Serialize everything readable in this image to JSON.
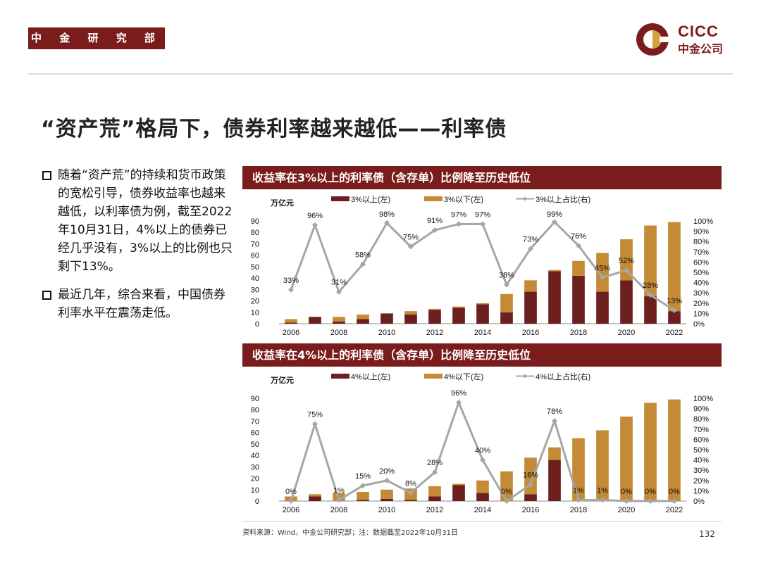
{
  "header": {
    "department": "中 金 研 究 部",
    "logo_en": "CICC",
    "logo_cn": "中金公司"
  },
  "title": "“资产荒”格局下，债券利率越来越低——利率债",
  "bullets": [
    "随着“资产荒”的持续和货币政策的宽松引导，债券收益率也越来越低，以利率债为例，截至2022年10月31日，4%以上的债券已经几乎没有，3%以上的比例也只剩下13%。",
    "最近几年，综合来看，中国债券利率水平在震荡走低。"
  ],
  "chart_data": [
    {
      "type": "bar",
      "panel_title": "收益率在3%以上的利率债（含存单）比例降至历史低位",
      "unit_label": "万亿元",
      "years": [
        2006,
        2007,
        2008,
        2009,
        2010,
        2011,
        2012,
        2013,
        2014,
        2015,
        2016,
        2017,
        2018,
        2019,
        2020,
        2021,
        2022
      ],
      "x_ticks": [
        "2006",
        "2008",
        "2010",
        "2012",
        "2014",
        "2016",
        "2018",
        "2020",
        "2022"
      ],
      "y_left_ticks": [
        "0",
        "10",
        "20",
        "30",
        "40",
        "50",
        "60",
        "70",
        "80",
        "90"
      ],
      "y_right_ticks": [
        "0%",
        "10%",
        "20%",
        "30%",
        "40%",
        "50%",
        "60%",
        "70%",
        "80%",
        "90%",
        "100%"
      ],
      "ylim_left": [
        0,
        90
      ],
      "ylim_right": [
        0,
        100
      ],
      "legend": [
        "3%以上(左)",
        "3%以下(左)",
        "3%以上占比(右)"
      ],
      "series": [
        {
          "name": "3%以上(左)",
          "values": [
            1,
            6,
            2,
            4,
            9,
            8,
            12,
            14,
            17,
            10,
            28,
            46,
            42,
            28,
            38,
            24,
            11
          ]
        },
        {
          "name": "3%以下(左)",
          "values": [
            3,
            0,
            4,
            4,
            0,
            3,
            1,
            1,
            1,
            16,
            10,
            1,
            13,
            34,
            36,
            62,
            78
          ]
        }
      ],
      "ratio": {
        "name": "3%以上占比(右)",
        "values": [
          33,
          96,
          31,
          58,
          98,
          75,
          91,
          97,
          97,
          38,
          73,
          99,
          76,
          45,
          52,
          28,
          13
        ]
      },
      "ratio_labels": [
        "33%",
        "96%",
        "31%",
        "58%",
        "98%",
        "75%",
        "91%",
        "97%",
        "97%",
        "38%",
        "73%",
        "99%",
        "76%",
        "45%",
        "52%",
        "28%",
        "13%"
      ],
      "colors": {
        "above": "#6b1f1f",
        "below": "#c48a35",
        "line": "#a6a6a6"
      }
    },
    {
      "type": "bar",
      "panel_title": "收益率在4%以上的利率债（含存单）比例降至历史低位",
      "unit_label": "万亿元",
      "years": [
        2006,
        2007,
        2008,
        2009,
        2010,
        2011,
        2012,
        2013,
        2014,
        2015,
        2016,
        2017,
        2018,
        2019,
        2020,
        2021,
        2022
      ],
      "x_ticks": [
        "2006",
        "2008",
        "2010",
        "2012",
        "2014",
        "2016",
        "2018",
        "2020",
        "2022"
      ],
      "y_left_ticks": [
        "0",
        "10",
        "20",
        "30",
        "40",
        "50",
        "60",
        "70",
        "80",
        "90"
      ],
      "y_right_ticks": [
        "0%",
        "10%",
        "20%",
        "30%",
        "40%",
        "50%",
        "60%",
        "70%",
        "80%",
        "90%",
        "100%"
      ],
      "ylim_left": [
        0,
        90
      ],
      "ylim_right": [
        0,
        100
      ],
      "legend": [
        "4%以上(左)",
        "4%以下(左)",
        "4%以上占比(右)"
      ],
      "series": [
        {
          "name": "4%以上(左)",
          "values": [
            0,
            4,
            0,
            1,
            2,
            1,
            4,
            14,
            7,
            0,
            6,
            36,
            0,
            0,
            0,
            0,
            0
          ]
        },
        {
          "name": "4%以下(左)",
          "values": [
            4,
            2,
            7,
            7,
            8,
            10,
            9,
            1,
            11,
            26,
            32,
            11,
            55,
            62,
            74,
            86,
            89
          ]
        }
      ],
      "ratio": {
        "name": "4%以上占比(右)",
        "values": [
          0,
          75,
          1,
          15,
          20,
          8,
          28,
          96,
          40,
          0,
          16,
          78,
          1,
          1,
          0,
          0,
          0
        ]
      },
      "ratio_labels": [
        "0%",
        "75%",
        "1%",
        "15%",
        "20%",
        "8%",
        "28%",
        "96%",
        "40%",
        "0%",
        "16%",
        "78%",
        "1%",
        "1%",
        "0%",
        "0%",
        "0%"
      ],
      "colors": {
        "above": "#6b1f1f",
        "below": "#c48a35",
        "line": "#a6a6a6"
      }
    }
  ],
  "footer": {
    "source": "资料来源：Wind，中金公司研究部；注：数据截至2022年10月31日",
    "page_number": "132"
  }
}
